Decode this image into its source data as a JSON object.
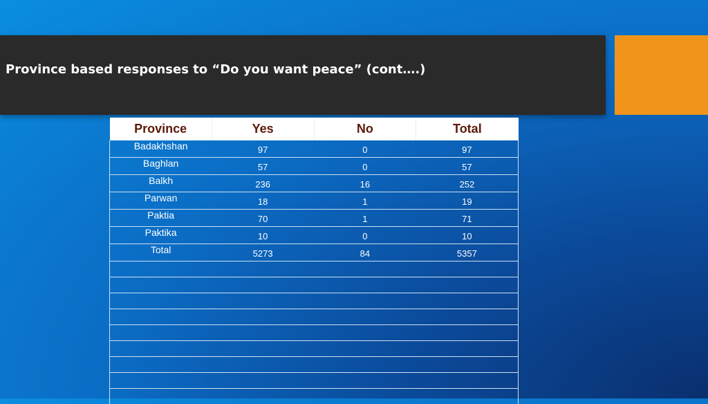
{
  "slide": {
    "title": "Province based responses to “Do you want peace” (cont….)",
    "colors": {
      "title_bar": "#2a2a2a",
      "accent": "#f0951a",
      "header_text": "#5c1a0a"
    }
  },
  "table": {
    "headers": [
      "Province",
      "Yes",
      "No",
      "Total"
    ],
    "rows": [
      [
        "Badakhshan",
        "97",
        "0",
        "97"
      ],
      [
        "Baghlan",
        "57",
        "0",
        "57"
      ],
      [
        "Balkh",
        "236",
        "16",
        "252"
      ],
      [
        "Parwan",
        "18",
        "1",
        "19"
      ],
      [
        "Paktia",
        "70",
        "1",
        "71"
      ],
      [
        "Paktika",
        "10",
        "0",
        "10"
      ],
      [
        "Total",
        "5273",
        "84",
        "5357"
      ]
    ],
    "empty_rows": 9
  }
}
